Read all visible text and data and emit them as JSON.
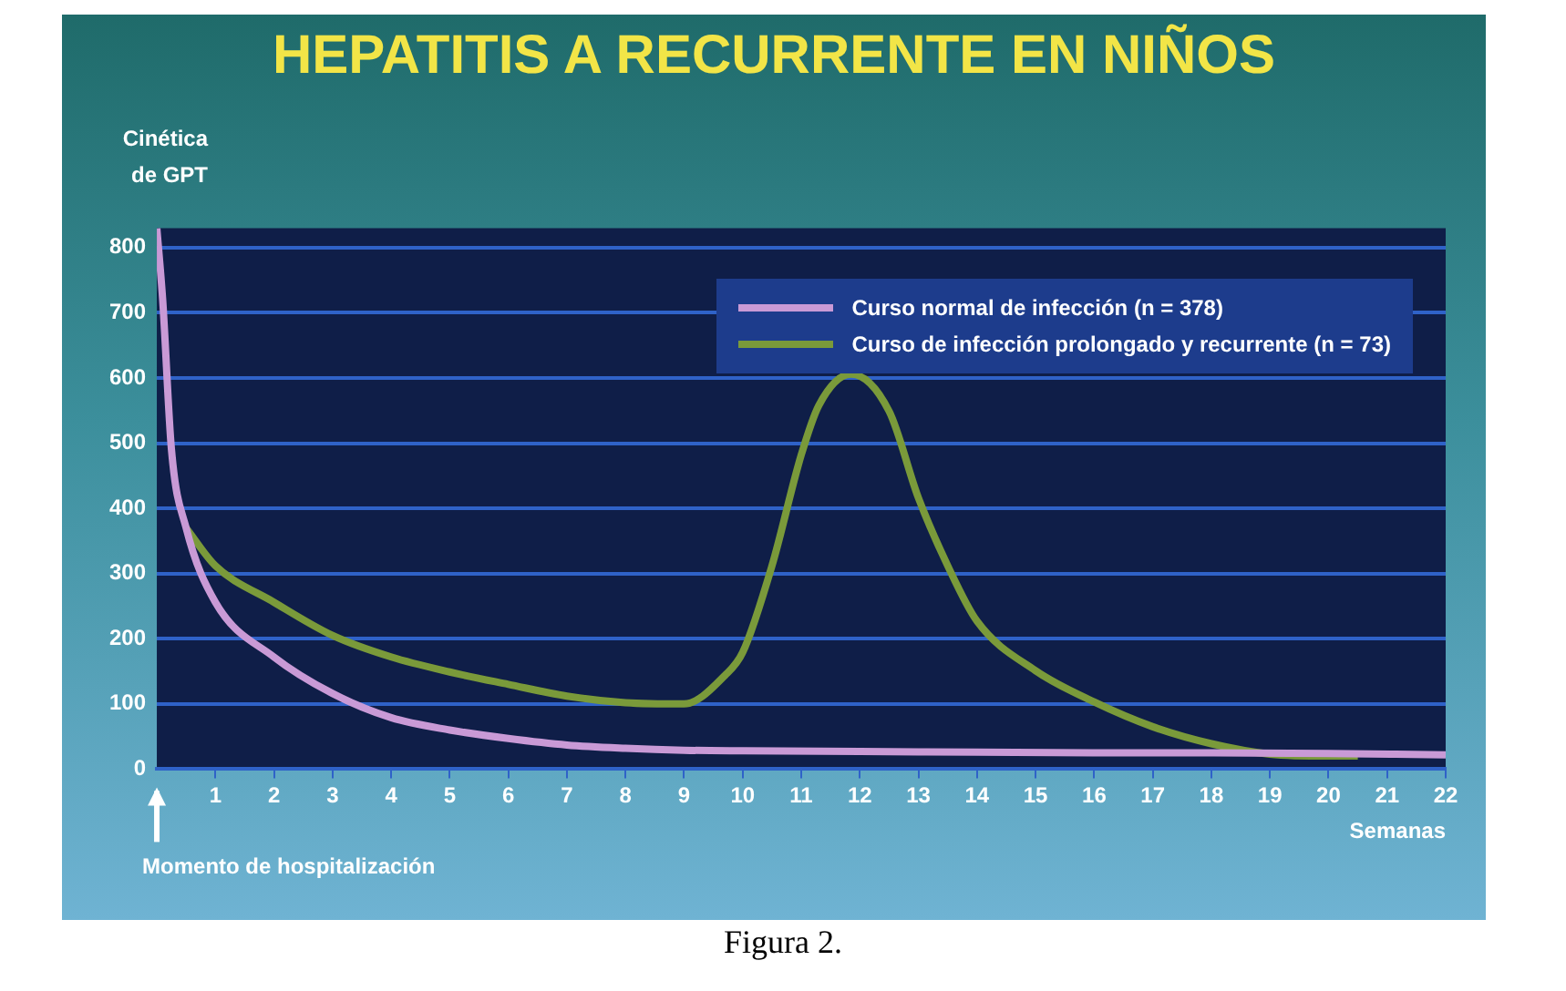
{
  "chart_data": {
    "type": "line",
    "title": "HEPATITIS A RECURRENTE EN NIÑOS",
    "xlabel": "Semanas",
    "ylabel": "Cinética de GPT",
    "xlim": [
      0,
      22
    ],
    "xticks": [
      1,
      2,
      3,
      4,
      5,
      6,
      7,
      8,
      9,
      10,
      11,
      12,
      13,
      14,
      15,
      16,
      17,
      18,
      19,
      20,
      21,
      22
    ],
    "ylim": [
      0,
      830
    ],
    "yticks": [
      0,
      100,
      200,
      300,
      400,
      500,
      600,
      700,
      800
    ],
    "grid": "y",
    "legend": "top right",
    "marker": "none",
    "line_style": "solid",
    "series": [
      {
        "name": "Curso normal de infección (n = 378)",
        "color": "#c99ad6",
        "x": [
          0,
          0.1,
          0.25,
          0.5,
          1,
          2,
          3,
          4,
          5,
          6,
          7,
          8,
          9,
          10,
          12,
          14,
          16,
          18,
          20,
          22
        ],
        "values": [
          830,
          720,
          490,
          370,
          256,
          172,
          116,
          79,
          60,
          47,
          37,
          32,
          29,
          28,
          27,
          26,
          25,
          25,
          24,
          22
        ]
      },
      {
        "name": "Curso de infección prolongado y recurrente (n = 73)",
        "color": "#7a9a3a",
        "x": [
          0.5,
          1,
          2,
          3,
          4,
          5,
          6,
          7,
          8,
          9,
          9.7,
          10,
          10.5,
          11,
          11.3,
          11.85,
          12.5,
          13,
          13.5,
          14,
          15,
          16,
          17,
          18,
          19,
          20,
          20.5
        ],
        "values": [
          370,
          312,
          256,
          205,
          172,
          149,
          130,
          112,
          102,
          100,
          144,
          179,
          312,
          482,
          558,
          606,
          549,
          416,
          312,
          227,
          151,
          103,
          65,
          39,
          23,
          20,
          20
        ]
      }
    ],
    "annotations": [
      "Momento de hospitalización",
      "Figura 2."
    ]
  }
}
